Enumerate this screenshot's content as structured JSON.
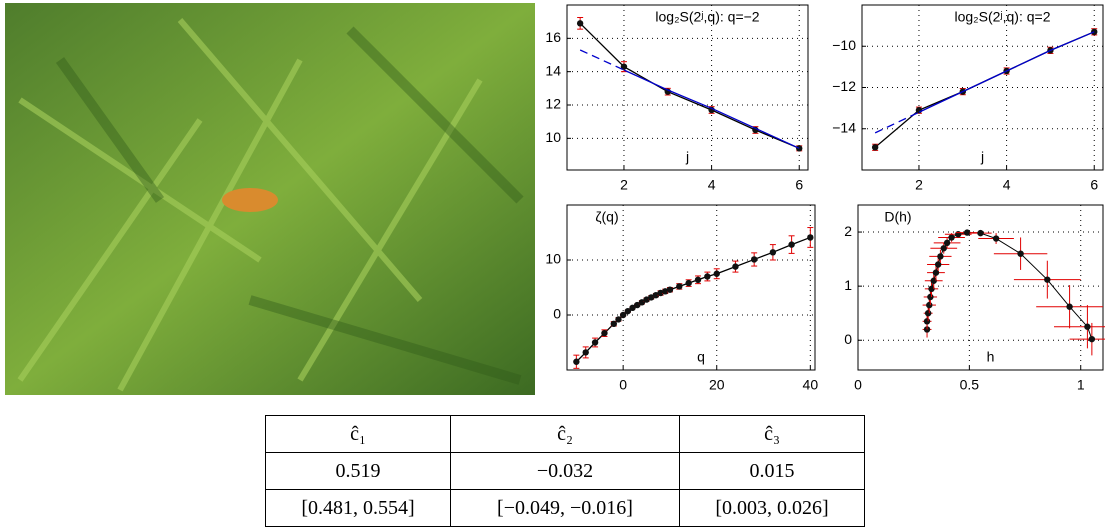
{
  "chart_data": [
    {
      "type": "line",
      "title": "log₂S(2ʲ,q): q=−2",
      "x_label": "j",
      "x": [
        1,
        2,
        3,
        4,
        5,
        6
      ],
      "xlim": [
        0.7,
        6.2
      ],
      "xticks": [
        2,
        4,
        6
      ],
      "ylim": [
        8.1,
        18
      ],
      "yticks": [
        10,
        12,
        14,
        16
      ],
      "grid": true,
      "series": [
        {
          "color": "#000000",
          "marker_color": "#111111",
          "error_color": "#e00000",
          "values": [
            16.9,
            14.3,
            12.8,
            11.7,
            10.5,
            9.4
          ],
          "errors": [
            0.35,
            0.3,
            0.2,
            0.2,
            0.2,
            0.15
          ]
        },
        {
          "color": "#0000cc",
          "values": [
            null,
            14.1,
            12.9,
            11.8,
            10.6,
            9.4
          ]
        },
        {
          "color": "#0000cc",
          "dash": true,
          "values": [
            15.3,
            14.1,
            null,
            null,
            null,
            null
          ]
        }
      ]
    },
    {
      "type": "line",
      "title": "log₂S(2ʲ,q): q=2",
      "x_label": "j",
      "x": [
        1,
        2,
        3,
        4,
        5,
        6
      ],
      "xlim": [
        0.7,
        6.2
      ],
      "xticks": [
        2,
        4,
        6
      ],
      "ylim": [
        -16,
        -8
      ],
      "yticks": [
        {
          "value": -14,
          "label": "−14"
        },
        {
          "value": -12,
          "label": "−12"
        },
        {
          "value": -10,
          "label": "−10"
        }
      ],
      "grid": true,
      "series": [
        {
          "color": "#000000",
          "marker_color": "#111111",
          "error_color": "#e00000",
          "values": [
            -14.9,
            -13.1,
            -12.2,
            -11.2,
            -10.2,
            -9.3
          ],
          "errors": [
            0.15,
            0.15,
            0.15,
            0.15,
            0.15,
            0.15
          ]
        },
        {
          "color": "#0000cc",
          "values": [
            null,
            -13.2,
            -12.2,
            -11.2,
            -10.2,
            -9.3
          ]
        },
        {
          "color": "#0000cc",
          "dash": true,
          "values": [
            -14.2,
            -13.2,
            null,
            null,
            null,
            null
          ]
        }
      ]
    },
    {
      "type": "line",
      "title": "ζ(q)",
      "x_label": "q",
      "x": [
        -10,
        -8,
        -6,
        -4,
        -2,
        -1,
        0,
        1,
        2,
        3,
        4,
        5,
        6,
        7,
        8,
        9,
        10,
        12,
        14,
        16,
        18,
        20,
        24,
        28,
        32,
        36,
        40
      ],
      "xlim": [
        -12,
        41
      ],
      "xticks": [
        0,
        20,
        40
      ],
      "ylim": [
        -10,
        20
      ],
      "yticks": [
        0,
        10
      ],
      "grid": true,
      "series": [
        {
          "color": "#000000",
          "marker_color": "#111111",
          "error_color": "#e00000",
          "values": [
            -8.5,
            -6.8,
            -5.0,
            -3.3,
            -1.6,
            -0.8,
            0,
            0.7,
            1.3,
            1.8,
            2.3,
            2.8,
            3.2,
            3.6,
            4.0,
            4.3,
            4.6,
            5.2,
            5.8,
            6.4,
            7.0,
            7.5,
            8.8,
            10.1,
            11.4,
            12.8,
            14.1
          ],
          "errors": [
            1.2,
            1.0,
            0.8,
            0.6,
            0.4,
            0.3,
            0.2,
            0.2,
            0.2,
            0.2,
            0.3,
            0.3,
            0.3,
            0.3,
            0.4,
            0.4,
            0.4,
            0.5,
            0.6,
            0.7,
            0.8,
            0.9,
            1.0,
            1.2,
            1.4,
            1.6,
            1.8
          ]
        }
      ]
    },
    {
      "type": "scatter",
      "title": "D(h)",
      "x_label": "h",
      "xlim": [
        0,
        1.1
      ],
      "xticks": [
        0,
        0.5,
        1
      ],
      "ylim": [
        -0.55,
        2.5
      ],
      "yticks": [
        0,
        1,
        2
      ],
      "grid": true,
      "series": [
        {
          "color": "#000000",
          "marker_color": "#111111",
          "error_color": "#e00000",
          "x": [
            0.31,
            0.31,
            0.315,
            0.32,
            0.325,
            0.33,
            0.34,
            0.35,
            0.36,
            0.37,
            0.385,
            0.4,
            0.42,
            0.45,
            0.49,
            0.55,
            0.62,
            0.73,
            0.85,
            0.95,
            1.03,
            1.05
          ],
          "values": [
            0.2,
            0.35,
            0.5,
            0.65,
            0.8,
            0.95,
            1.1,
            1.25,
            1.4,
            1.55,
            1.7,
            1.8,
            1.9,
            1.96,
            1.99,
            1.98,
            1.88,
            1.6,
            1.12,
            0.62,
            0.25,
            0.02
          ],
          "x_errors": [
            0.02,
            0.02,
            0.02,
            0.03,
            0.03,
            0.03,
            0.04,
            0.04,
            0.05,
            0.05,
            0.06,
            0.06,
            0.06,
            0.06,
            0.05,
            0.05,
            0.08,
            0.12,
            0.15,
            0.15,
            0.15,
            0.1
          ],
          "errors": [
            0.15,
            0.15,
            0.15,
            0.15,
            0.15,
            0.15,
            0.15,
            0.15,
            0.12,
            0.12,
            0.1,
            0.1,
            0.08,
            0.05,
            0.05,
            0.05,
            0.1,
            0.3,
            0.35,
            0.4,
            0.4,
            0.3
          ]
        }
      ]
    }
  ],
  "table": {
    "header": [
      "ĉ₁",
      "ĉ₂",
      "ĉ₃"
    ],
    "rows": [
      [
        "0.519",
        "−0.032",
        "0.015"
      ],
      [
        "[0.481, 0.554]",
        "[−0.049, −0.016]",
        "[0.003, 0.026]"
      ]
    ]
  }
}
